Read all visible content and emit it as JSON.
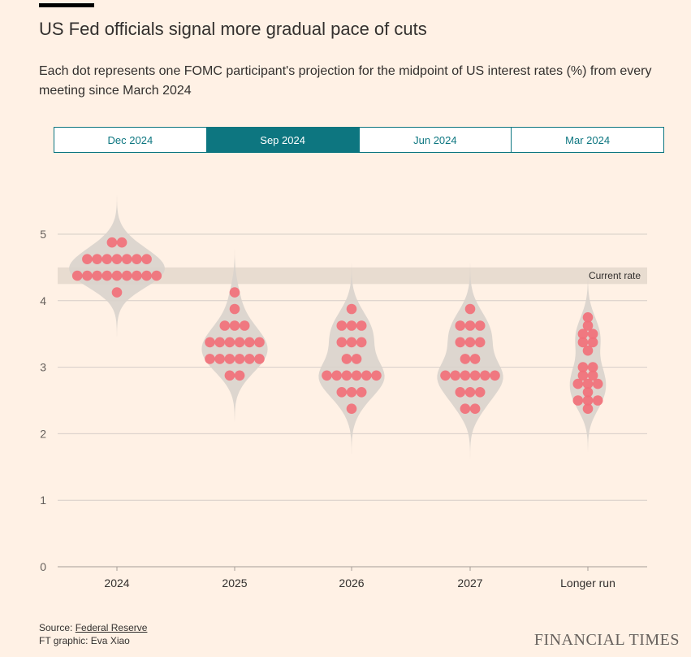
{
  "header": {
    "title": "US Fed officials signal more gradual pace of cuts",
    "subtitle": "Each dot represents one FOMC participant's projection for the midpoint of US interest rates (%) from every meeting since March 2024"
  },
  "tabs": [
    {
      "label": "Dec 2024",
      "active": false
    },
    {
      "label": "Sep 2024",
      "active": true
    },
    {
      "label": "Jun 2024",
      "active": false
    },
    {
      "label": "Mar 2024",
      "active": false
    }
  ],
  "chart_data": {
    "type": "scatter",
    "subtype": "dot-plot with violin distributions",
    "ylim": [
      0,
      5
    ],
    "yticks": [
      0,
      1,
      2,
      3,
      4,
      5
    ],
    "categories": [
      "2024",
      "2025",
      "2026",
      "2027",
      "Longer run"
    ],
    "current_rate": {
      "label": "Current rate",
      "range": [
        4.25,
        4.5
      ]
    },
    "series": [
      {
        "name": "2024",
        "values": [
          4.875,
          4.875,
          4.625,
          4.625,
          4.625,
          4.625,
          4.625,
          4.625,
          4.625,
          4.375,
          4.375,
          4.375,
          4.375,
          4.375,
          4.375,
          4.375,
          4.375,
          4.375,
          4.125
        ]
      },
      {
        "name": "2025",
        "values": [
          4.125,
          3.875,
          3.625,
          3.625,
          3.625,
          3.375,
          3.375,
          3.375,
          3.375,
          3.375,
          3.375,
          3.125,
          3.125,
          3.125,
          3.125,
          3.125,
          3.125,
          2.875,
          2.875
        ]
      },
      {
        "name": "2026",
        "values": [
          3.875,
          3.625,
          3.625,
          3.625,
          3.375,
          3.375,
          3.375,
          3.125,
          3.125,
          2.875,
          2.875,
          2.875,
          2.875,
          2.875,
          2.875,
          2.625,
          2.625,
          2.625,
          2.375
        ]
      },
      {
        "name": "2027",
        "values": [
          3.875,
          3.625,
          3.625,
          3.625,
          3.375,
          3.375,
          3.375,
          3.125,
          3.125,
          2.875,
          2.875,
          2.875,
          2.875,
          2.875,
          2.875,
          2.625,
          2.625,
          2.625,
          2.375,
          2.375
        ]
      },
      {
        "name": "Longer run",
        "values": [
          3.75,
          3.625,
          3.5,
          3.5,
          3.375,
          3.375,
          3.25,
          3.0,
          3.0,
          2.875,
          2.875,
          2.75,
          2.75,
          2.75,
          2.625,
          2.5,
          2.5,
          2.5,
          2.375
        ]
      }
    ],
    "colors": {
      "dot": "#f1707a",
      "violin": "#d9d3cc",
      "band": "#e8dcd0",
      "grid": "#d6cec8",
      "accent": "#0d7680"
    }
  },
  "footer": {
    "source_prefix": "Source: ",
    "source_link": "Federal Reserve",
    "credit": "FT graphic: Eva Xiao",
    "brand": "FINANCIAL TIMES"
  }
}
